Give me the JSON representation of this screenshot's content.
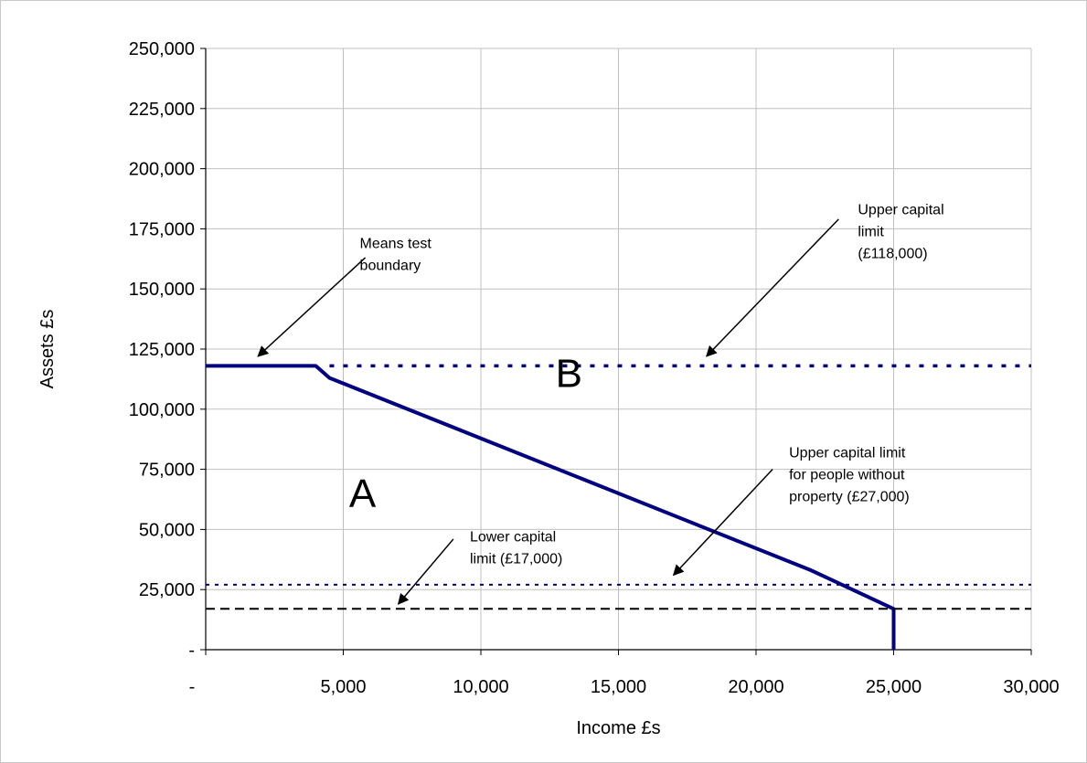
{
  "chart_data": {
    "type": "line",
    "title": "",
    "xlabel": "Income £s",
    "ylabel": "Assets £s",
    "xlim": [
      0,
      30000
    ],
    "ylim": [
      0,
      250000
    ],
    "grid": true,
    "legend": "none",
    "x_ticks": [
      0,
      5000,
      10000,
      15000,
      20000,
      25000,
      30000
    ],
    "x_tick_labels": [
      "-",
      "5,000",
      "10,000",
      "15,000",
      "20,000",
      "25,000",
      "30,000"
    ],
    "y_ticks": [
      0,
      25000,
      50000,
      75000,
      100000,
      125000,
      150000,
      175000,
      200000,
      225000,
      250000
    ],
    "y_tick_labels": [
      "-",
      "25,000",
      "50,000",
      "75,000",
      "100,000",
      "125,000",
      "150,000",
      "175,000",
      "200,000",
      "225,000",
      "250,000"
    ],
    "series": [
      {
        "role": "means-test-boundary",
        "style": "solid",
        "color": "#000080",
        "points": [
          [
            0,
            118000
          ],
          [
            4000,
            118000
          ],
          [
            4500,
            113000
          ],
          [
            22000,
            33000
          ],
          [
            25000,
            17000
          ],
          [
            25000,
            0
          ]
        ]
      },
      {
        "role": "upper-capital-limit",
        "style": "dotted",
        "color": "#000080",
        "points": [
          [
            4500,
            118000
          ],
          [
            30000,
            118000
          ]
        ]
      },
      {
        "role": "upper-capital-limit-without-property",
        "style": "dotted-fine",
        "color": "#000080",
        "points": [
          [
            0,
            27000
          ],
          [
            30000,
            27000
          ]
        ]
      },
      {
        "role": "lower-capital-limit",
        "style": "dashed",
        "color": "#000000",
        "points": [
          [
            0,
            17000
          ],
          [
            30000,
            17000
          ]
        ]
      }
    ],
    "regions": [
      {
        "label": "A",
        "x": 5700,
        "y": 65000
      },
      {
        "label": "B",
        "x": 13200,
        "y": 115000
      }
    ],
    "annotations": [
      {
        "lines": [
          "Means test",
          "boundary"
        ],
        "text_at": [
          5600,
          167000
        ],
        "arrow_from": [
          5800,
          163000
        ],
        "arrow_to": [
          1900,
          122000
        ]
      },
      {
        "lines": [
          "Upper capital",
          "limit",
          "(£118,000)"
        ],
        "text_at": [
          23700,
          181000
        ],
        "arrow_from": [
          23000,
          179000
        ],
        "arrow_to": [
          18200,
          122000
        ]
      },
      {
        "lines": [
          "Upper capital limit",
          "for people without",
          "property (£27,000)"
        ],
        "text_at": [
          21200,
          80000
        ],
        "arrow_from": [
          20600,
          75000
        ],
        "arrow_to": [
          17000,
          31000
        ]
      },
      {
        "lines": [
          "Lower capital",
          "limit (£17,000)"
        ],
        "text_at": [
          9600,
          45000
        ],
        "arrow_from": [
          9000,
          46000
        ],
        "arrow_to": [
          7000,
          19000
        ]
      }
    ]
  }
}
